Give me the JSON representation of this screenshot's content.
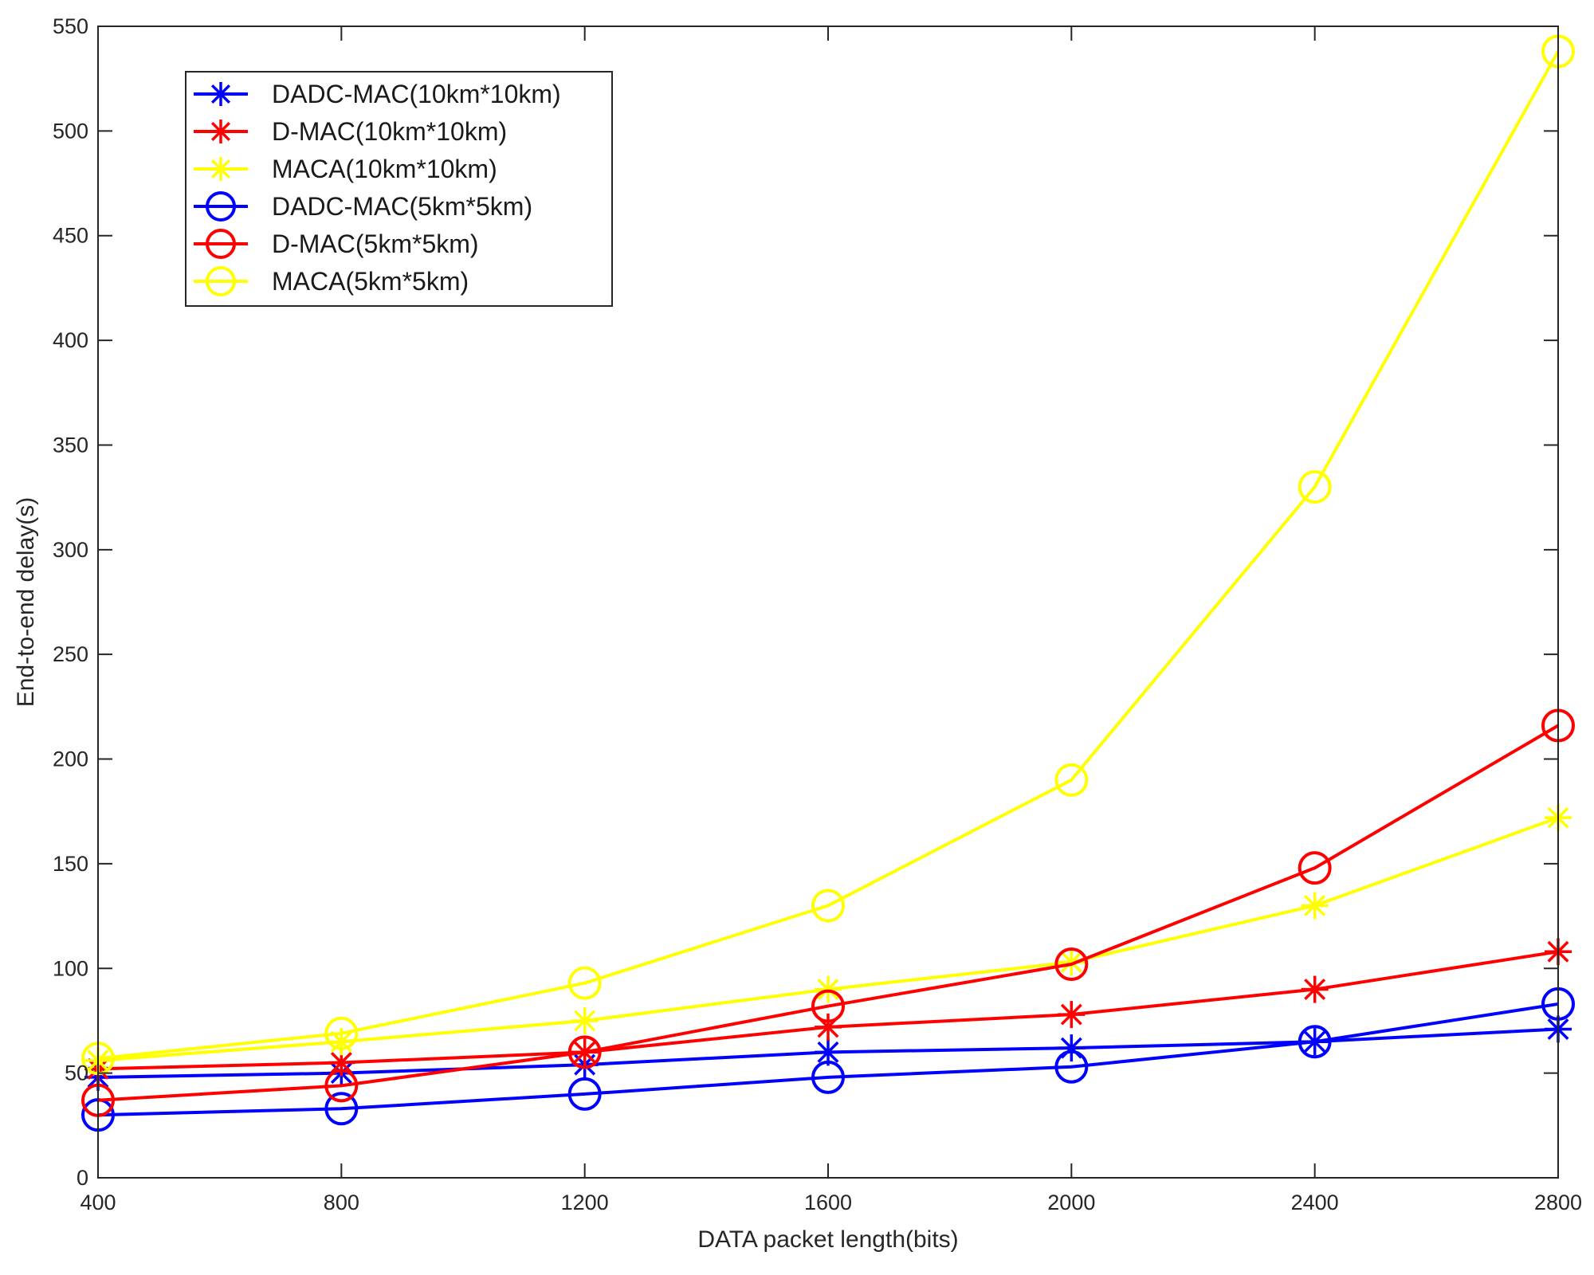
{
  "chart_data": {
    "type": "line",
    "title": "",
    "xlabel": "DATA packet length(bits)",
    "ylabel": "End-to-end delay(s)",
    "x": [
      400,
      800,
      1200,
      1600,
      2000,
      2400,
      2800
    ],
    "xlim": [
      400,
      2800
    ],
    "ylim": [
      0,
      550
    ],
    "xticks": [
      400,
      800,
      1200,
      1600,
      2000,
      2400,
      2800
    ],
    "yticks": [
      0,
      50,
      100,
      150,
      200,
      250,
      300,
      350,
      400,
      450,
      500,
      550
    ],
    "grid": false,
    "legend_location": "top-left",
    "series": [
      {
        "name": "DADC-MAC(10km*10km)",
        "color": "#0000ff",
        "marker": "asterisk",
        "values": [
          48,
          50,
          54,
          60,
          62,
          65,
          71
        ]
      },
      {
        "name": "D-MAC(10km*10km)",
        "color": "#ff0000",
        "marker": "asterisk",
        "values": [
          52,
          55,
          60,
          72,
          78,
          90,
          108
        ]
      },
      {
        "name": "MACA(10km*10km)",
        "color": "#ffff00",
        "marker": "asterisk",
        "values": [
          56,
          65,
          75,
          90,
          103,
          130,
          172
        ]
      },
      {
        "name": "DADC-MAC(5km*5km)",
        "color": "#0000ff",
        "marker": "circle",
        "values": [
          30,
          33,
          40,
          48,
          53,
          65,
          83
        ]
      },
      {
        "name": "D-MAC(5km*5km)",
        "color": "#ff0000",
        "marker": "circle",
        "values": [
          37,
          44,
          60,
          82,
          102,
          148,
          216
        ]
      },
      {
        "name": "MACA(5km*5km)",
        "color": "#ffff00",
        "marker": "circle",
        "values": [
          57,
          69,
          93,
          130,
          190,
          330,
          538
        ]
      }
    ]
  }
}
